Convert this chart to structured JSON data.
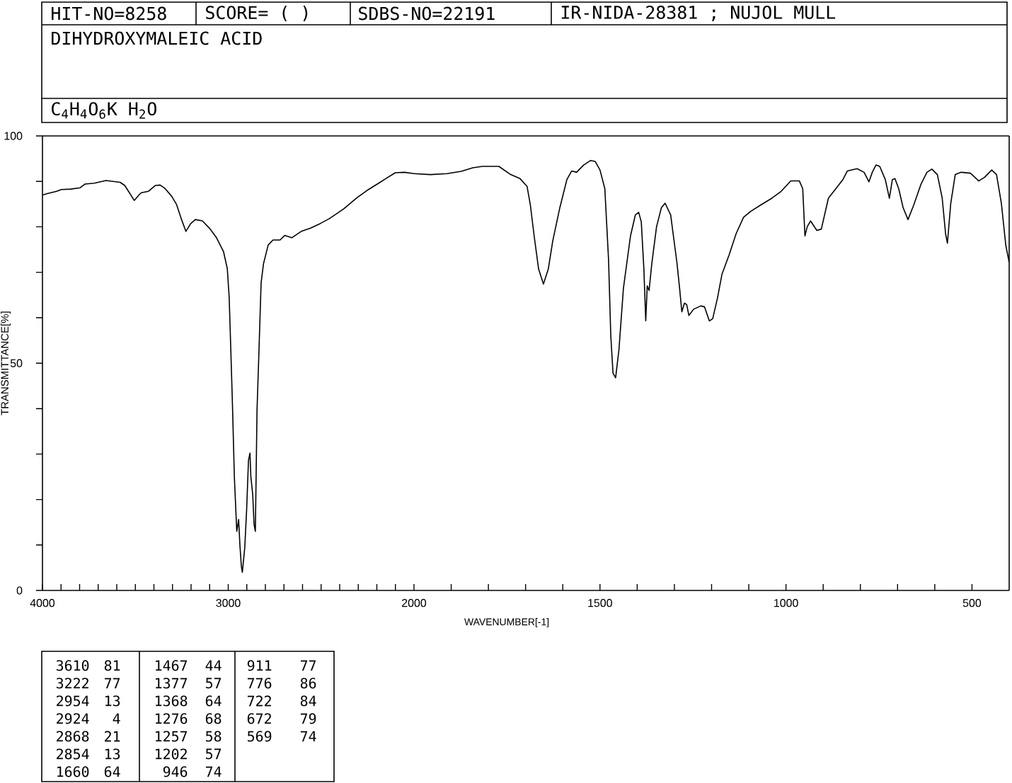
{
  "chart_data": [
    {
      "type": "line",
      "title": "DIHYDROXYMALEIC ACID",
      "subtitle": "C$_{4}$H$_{4}$O$_{6}$K H$_{2}$O",
      "ylabel": "TRANSMITTANCE[%]",
      "annotations": [
        "HIT-NO=8258",
        "SCORE= ( )",
        "SDBS-NO=22191",
        "IR-NIDA-28381 ; NUJOL MULL",
        "3610",
        "81",
        "3222",
        "77",
        "2954",
        "13",
        "2924",
        "4",
        "2868",
        "21",
        "2854",
        "13",
        "1660",
        "64",
        "1467",
        "44",
        "1377",
        "57",
        "1368",
        "64",
        "1276",
        "68",
        "1257",
        "58",
        "1202",
        "57",
        "946",
        "74",
        "911",
        "77",
        "776",
        "86",
        "722",
        "84",
        "672",
        "79",
        "569",
        "74"
      ],
      "color": "#000000",
      "x": [
        4000,
        3975,
        3924,
        3899,
        3848,
        3797,
        3772,
        3721,
        3658,
        3620,
        3582,
        3557,
        3532,
        3506,
        3481,
        3468,
        3430,
        3392,
        3367,
        3342,
        3304,
        3278,
        3253,
        3228,
        3202,
        3177,
        3139,
        3101,
        3063,
        3025,
        3005,
        2995,
        2987,
        2977,
        2967,
        2954,
        2944,
        2937,
        2929,
        2924,
        2911,
        2901,
        2891,
        2883,
        2878,
        2868,
        2861,
        2854,
        2845,
        2835,
        2823,
        2810,
        2785,
        2759,
        2721,
        2696,
        2658,
        2607,
        2557,
        2506,
        2456,
        2380,
        2304,
        2253,
        2190,
        2152,
        2101,
        2051,
        2000
      ],
      "values": [
        87.0,
        87.3,
        87.8,
        88.2,
        88.3,
        88.6,
        89.4,
        89.6,
        90.2,
        90.0,
        89.8,
        89.1,
        87.5,
        85.8,
        87.0,
        87.5,
        87.8,
        89.1,
        89.2,
        88.5,
        86.7,
        84.9,
        81.8,
        79.0,
        80.7,
        81.6,
        81.3,
        79.7,
        77.6,
        74.5,
        70.8,
        64.6,
        54.2,
        40.6,
        25.0,
        13.0,
        15.6,
        9.9,
        5.2,
        4.0,
        9.4,
        17.7,
        28.6,
        30.2,
        25.0,
        21.0,
        14.6,
        13.0,
        39.6,
        52.1,
        67.7,
        71.9,
        76.0,
        77.1,
        77.1,
        78.1,
        77.6,
        79.0,
        79.7,
        80.7,
        81.8,
        83.9,
        86.5,
        88.0,
        89.6,
        90.6,
        91.9,
        92.0,
        91.7
      ],
      "xlim": [
        4000,
        2000
      ],
      "ylim": [
        0,
        100
      ],
      "xticks": [
        4000,
        {
          "value": 3900,
          "label": null
        },
        {
          "value": 3800,
          "label": null
        },
        {
          "value": 3700,
          "label": null
        },
        {
          "value": 3600,
          "label": null
        },
        {
          "value": 3500,
          "label": null
        },
        {
          "value": 3400,
          "label": null
        },
        {
          "value": 3300,
          "label": null
        },
        {
          "value": 3200,
          "label": null
        },
        {
          "value": 3100,
          "label": null
        },
        3000,
        {
          "value": 2900,
          "label": null
        },
        {
          "value": 2800,
          "label": null
        },
        {
          "value": 2700,
          "label": null
        },
        {
          "value": 2600,
          "label": null
        },
        {
          "value": 2500,
          "label": null
        },
        {
          "value": 2400,
          "label": null
        },
        {
          "value": 2300,
          "label": null
        },
        {
          "value": 2200,
          "label": null
        },
        {
          "value": 2100,
          "label": null
        }
      ],
      "yticks": [
        0,
        {
          "value": 10,
          "label": null
        },
        {
          "value": 20,
          "label": null
        },
        {
          "value": 30,
          "label": null
        },
        {
          "value": 40,
          "label": null
        },
        50,
        {
          "value": 60,
          "label": null
        },
        {
          "value": 70,
          "label": null
        },
        {
          "value": 80,
          "label": null
        },
        {
          "value": 90,
          "label": null
        },
        100
      ]
    },
    {
      "type": "line",
      "xlabel": "WAVENUMBER[-1]",
      "color": "#000000",
      "x": [
        2000,
        1956,
        1911,
        1873,
        1842,
        1816,
        1772,
        1740,
        1715,
        1696,
        1687,
        1677,
        1665,
        1652,
        1639,
        1627,
        1608,
        1589,
        1576,
        1563,
        1544,
        1525,
        1513,
        1500,
        1487,
        1477,
        1471,
        1465,
        1458,
        1449,
        1437,
        1418,
        1405,
        1396,
        1389,
        1382,
        1377,
        1373,
        1368,
        1361,
        1348,
        1335,
        1325,
        1310,
        1293,
        1286,
        1280,
        1273,
        1267,
        1261,
        1248,
        1229,
        1219,
        1206,
        1197,
        1184,
        1172,
        1153,
        1134,
        1114,
        1095,
        1070,
        1038,
        1013,
        987,
        964,
        955,
        949,
        943,
        934,
        917,
        905,
        886,
        866,
        847,
        835,
        809,
        790,
        777,
        768,
        758,
        748,
        733,
        722,
        714,
        707,
        697,
        685,
        672,
        657,
        637,
        621,
        608,
        593,
        580,
        571,
        566,
        557,
        545,
        529,
        504,
        482,
        466,
        447,
        434,
        421,
        409,
        400
      ],
      "values": [
        91.7,
        91.5,
        91.7,
        92.2,
        93.0,
        93.3,
        93.3,
        91.5,
        90.6,
        88.9,
        84.7,
        78.0,
        70.7,
        67.4,
        70.7,
        76.9,
        84.2,
        90.4,
        92.3,
        92.0,
        93.6,
        94.6,
        94.4,
        92.5,
        88.4,
        72.8,
        56.1,
        47.8,
        46.8,
        53.0,
        66.5,
        78.0,
        82.6,
        83.2,
        81.1,
        70.7,
        59.3,
        67.0,
        66.0,
        71.7,
        80.0,
        84.2,
        85.2,
        82.6,
        72.0,
        66.5,
        61.3,
        63.2,
        62.9,
        60.5,
        61.9,
        62.6,
        62.4,
        59.3,
        59.8,
        64.4,
        69.6,
        73.8,
        78.5,
        82.1,
        83.4,
        84.7,
        86.3,
        87.8,
        90.1,
        90.1,
        88.4,
        78.0,
        80.0,
        81.3,
        79.2,
        79.5,
        86.3,
        88.4,
        90.4,
        92.3,
        92.8,
        92.0,
        89.9,
        92.0,
        93.6,
        93.3,
        90.4,
        86.3,
        90.4,
        90.6,
        88.4,
        84.2,
        81.6,
        84.7,
        89.4,
        92.0,
        92.7,
        91.5,
        86.3,
        78.5,
        76.4,
        85.2,
        91.5,
        92.0,
        91.8,
        90.1,
        90.9,
        92.5,
        91.5,
        85.2,
        75.9,
        72.2
      ],
      "xlim": [
        2000,
        400
      ],
      "ylim": [
        0,
        100
      ],
      "xticks": [
        2000,
        {
          "value": 1900,
          "label": null
        },
        {
          "value": 1800,
          "label": null
        },
        {
          "value": 1700,
          "label": null
        },
        {
          "value": 1600,
          "label": null
        },
        1500,
        {
          "value": 1400,
          "label": null
        },
        {
          "value": 1300,
          "label": null
        },
        {
          "value": 1200,
          "label": null
        },
        {
          "value": 1100,
          "label": null
        },
        1000,
        {
          "value": 900,
          "label": null
        },
        {
          "value": 800,
          "label": null
        },
        {
          "value": 700,
          "label": null
        },
        {
          "value": 600,
          "label": null
        },
        500
      ],
      "tick_labels": "x"
    }
  ]
}
